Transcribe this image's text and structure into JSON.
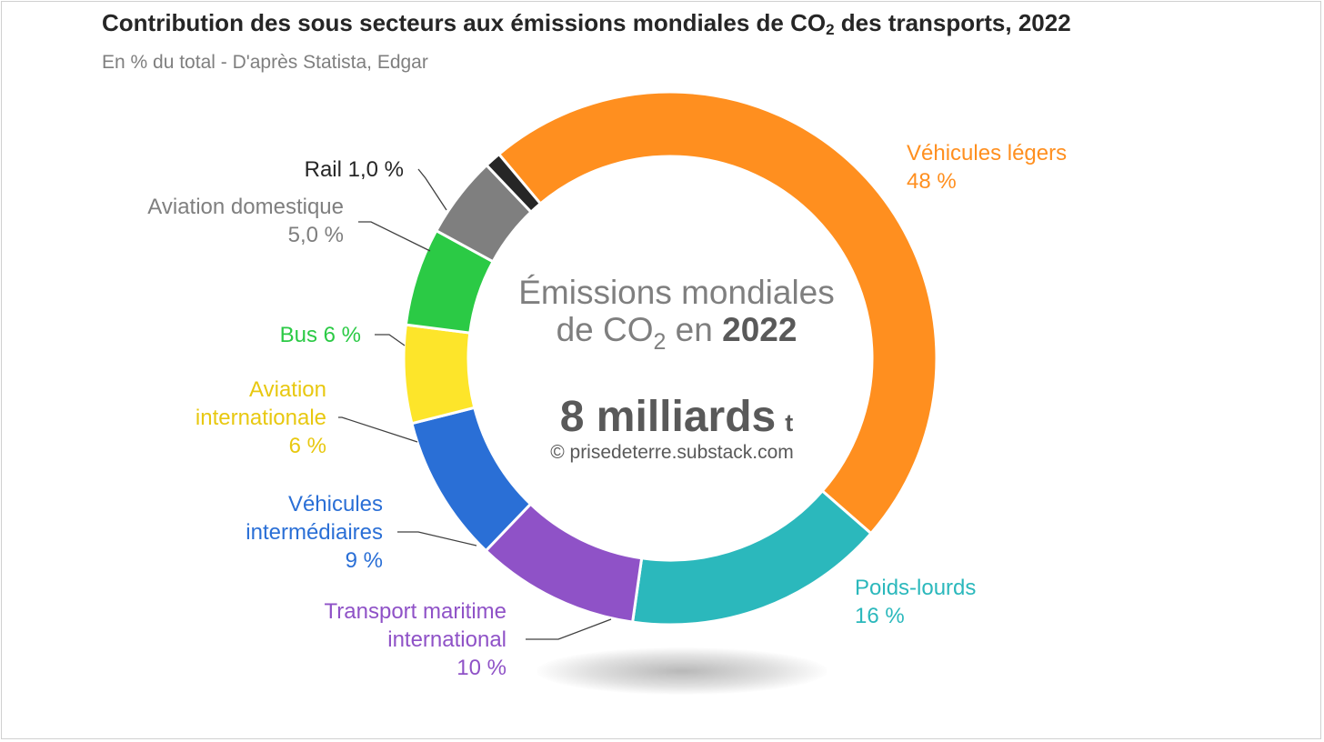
{
  "header": {
    "title_before": "Contribution des sous secteurs aux émissions mondiales de CO",
    "title_sub": "2",
    "title_after": " des transports, 2022",
    "subtitle": "En % du total - D'après Statista, Edgar"
  },
  "center": {
    "line1": "Émissions mondiales",
    "line2_prefix": "de CO",
    "line2_sub": "2",
    "line2_mid": " en ",
    "line2_year": "2022",
    "big_value": "8 milliards",
    "big_unit": "t",
    "credit": "© prisedeterre.substack.com"
  },
  "chart_data": {
    "type": "pie",
    "variant": "donut",
    "title": "Contribution des sous secteurs aux émissions mondiales de CO2 des transports, 2022",
    "subtitle": "En % du total - D'après Statista, Edgar",
    "unit": "%",
    "total_label": "8 milliards t",
    "slices": [
      {
        "name": "Véhicules légers",
        "value": 48,
        "label_lines": [
          "Véhicules légers",
          "48 %"
        ],
        "color": "#FF8F1F"
      },
      {
        "name": "Poids-lourds",
        "value": 16,
        "label_lines": [
          "Poids-lourds",
          "16 %"
        ],
        "color": "#2BB8BC"
      },
      {
        "name": "Transport maritime international",
        "value": 10,
        "label_lines": [
          "Transport maritime",
          "international",
          "10 %"
        ],
        "color": "#8F52C7"
      },
      {
        "name": "Véhicules intermédiaires",
        "value": 9,
        "label_lines": [
          "Véhicules",
          "intermédiaires",
          "9 %"
        ],
        "color": "#2A6FD6"
      },
      {
        "name": "Aviation internationale",
        "value": 6,
        "label_lines": [
          "Aviation",
          "internationale",
          "6 %"
        ],
        "color": "#FDE52A",
        "text_color": "#E8C810"
      },
      {
        "name": "Bus",
        "value": 6,
        "label_lines": [
          "Bus 6 %"
        ],
        "color": "#2BCA45"
      },
      {
        "name": "Aviation domestique",
        "value": 5,
        "label_lines": [
          "Aviation domestique",
          "5,0 %"
        ],
        "color": "#7F7F7F"
      },
      {
        "name": "Rail",
        "value": 1,
        "label_lines": [
          "Rail 1,0 %"
        ],
        "color": "#262626"
      }
    ]
  }
}
